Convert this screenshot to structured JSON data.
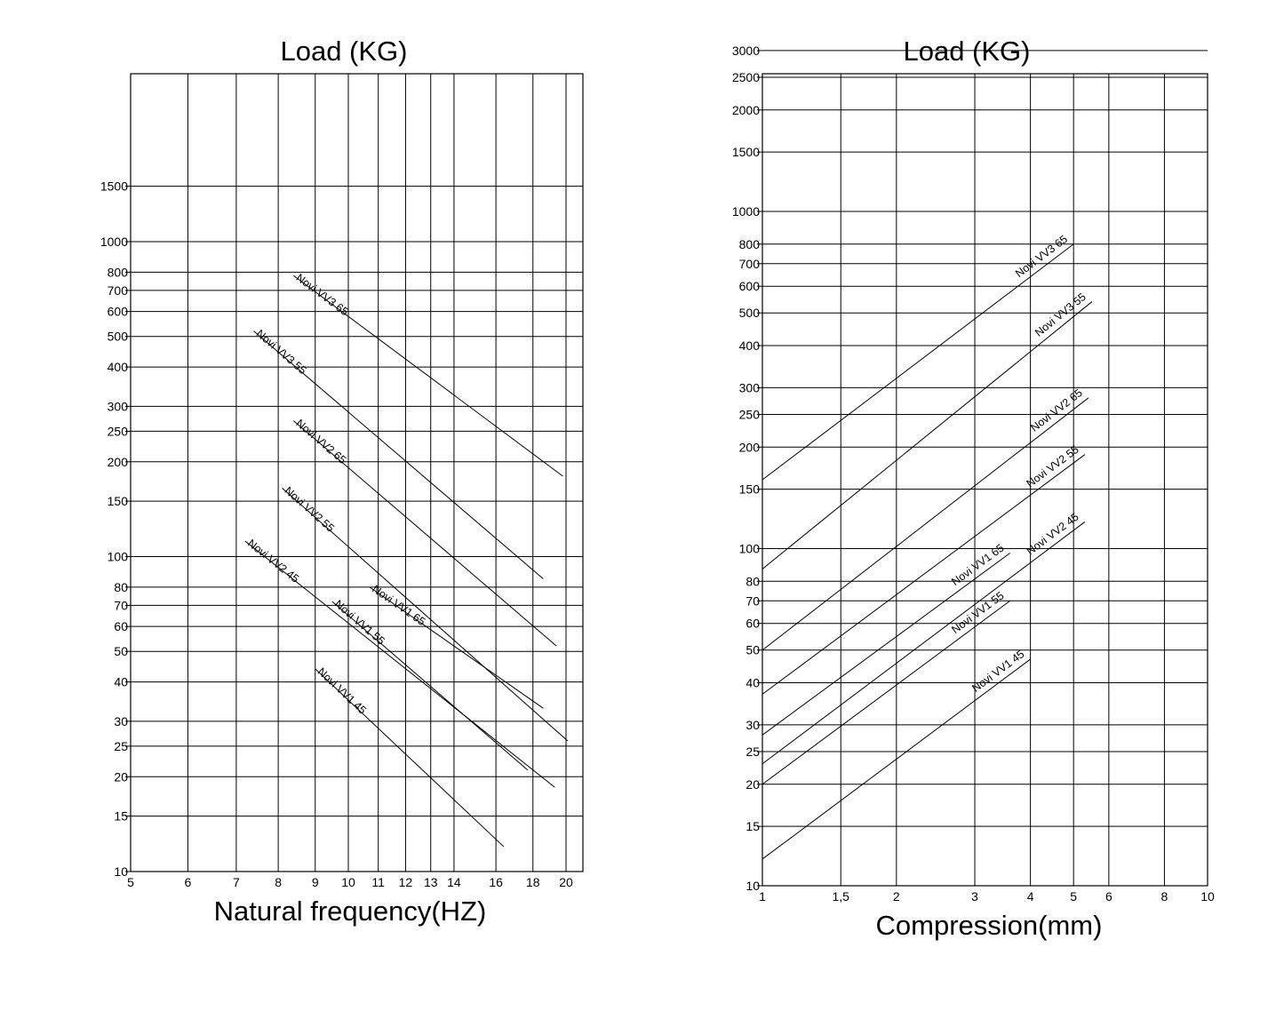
{
  "chart_data": [
    {
      "type": "line",
      "title": "Load (KG)",
      "xlabel": "Natural frequency(HZ)",
      "ylabel": "",
      "x_ticks": [
        "5",
        "6",
        "7",
        "8",
        "9",
        "10",
        "11",
        "12",
        "13",
        "14",
        "16",
        "18",
        "20"
      ],
      "y_ticks": [
        "10",
        "15",
        "20",
        "25",
        "30",
        "40",
        "50",
        "60",
        "70",
        "80",
        "100",
        "150",
        "200",
        "250",
        "300",
        "400",
        "500",
        "600",
        "700",
        "800",
        "1000",
        "1500"
      ],
      "xlim": [
        5,
        20.5
      ],
      "ylim": [
        10,
        3000
      ],
      "x_scale": "log",
      "y_scale": "log",
      "grid": true,
      "series": [
        {
          "name": "Novi VV3 65",
          "x": [
            8.4,
            19.8
          ],
          "y": [
            780,
            180
          ]
        },
        {
          "name": "Novi VV3 55",
          "x": [
            7.4,
            18.6
          ],
          "y": [
            520,
            85
          ]
        },
        {
          "name": "Novi VV2 65",
          "x": [
            8.4,
            19.4
          ],
          "y": [
            270,
            52
          ]
        },
        {
          "name": "Novi VV2 55",
          "x": [
            8.1,
            20.1
          ],
          "y": [
            165,
            26
          ]
        },
        {
          "name": "Novi VV2 45",
          "x": [
            7.2,
            19.3
          ],
          "y": [
            112,
            18.5
          ]
        },
        {
          "name": "Novi VV1 65",
          "x": [
            10.7,
            18.6
          ],
          "y": [
            80,
            33
          ]
        },
        {
          "name": "Novi VV1 55",
          "x": [
            9.5,
            17.7
          ],
          "y": [
            72,
            21
          ]
        },
        {
          "name": "Novi VV1 45",
          "x": [
            9.0,
            16.4
          ],
          "y": [
            44,
            12
          ]
        }
      ]
    },
    {
      "type": "line",
      "title": "Load (KG)",
      "xlabel": "Compression(mm)",
      "ylabel": "",
      "x_ticks": [
        "1",
        "1,5",
        "2",
        "3",
        "4",
        "5",
        "6",
        "8",
        "10"
      ],
      "y_ticks": [
        "10",
        "15",
        "20",
        "25",
        "30",
        "40",
        "50",
        "60",
        "70",
        "80",
        "100",
        "150",
        "200",
        "250",
        "300",
        "400",
        "500",
        "600",
        "700",
        "800",
        "1000",
        "1500",
        "2000",
        "2500",
        "3000"
      ],
      "xlim": [
        1,
        10
      ],
      "ylim": [
        10,
        3000
      ],
      "x_scale": "log",
      "y_scale": "log",
      "grid": true,
      "series": [
        {
          "name": "Novi VV3 65",
          "x": [
            1,
            5
          ],
          "y": [
            160,
            800
          ]
        },
        {
          "name": "Novi VV3 55",
          "x": [
            1,
            5.5
          ],
          "y": [
            87,
            540
          ]
        },
        {
          "name": "Novi VV2 65",
          "x": [
            1,
            5.4
          ],
          "y": [
            50,
            280
          ]
        },
        {
          "name": "Novi VV2 55",
          "x": [
            1,
            5.3
          ],
          "y": [
            37,
            190
          ]
        },
        {
          "name": "Novi VV1 65",
          "x": [
            1,
            3.6
          ],
          "y": [
            28,
            97
          ]
        },
        {
          "name": "Novi VV2 45",
          "x": [
            1,
            5.3
          ],
          "y": [
            23,
            120
          ]
        },
        {
          "name": "Novi VV1 55",
          "x": [
            1,
            3.6
          ],
          "y": [
            20,
            70
          ]
        },
        {
          "name": "Novi VV1 45",
          "x": [
            1,
            4.0
          ],
          "y": [
            12,
            47
          ]
        }
      ]
    }
  ]
}
